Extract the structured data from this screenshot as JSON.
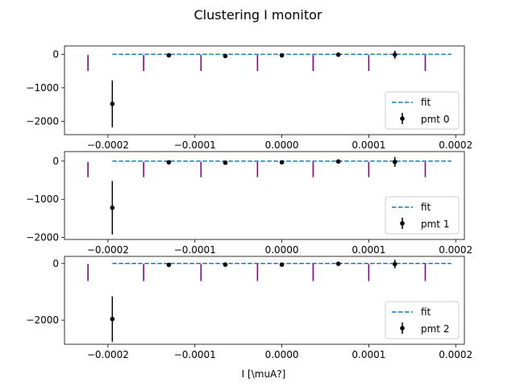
{
  "title": "Clustering I monitor",
  "colors": {
    "fit": "#1f77b4",
    "points": "#000000",
    "markers": "#8b008b",
    "legend_border": "#cccccc"
  },
  "chart_data": [
    {
      "type": "scatter",
      "xlabel": "",
      "xlim": [
        -0.00025,
        0.00021
      ],
      "ylim": [
        -2400,
        250
      ],
      "xticks": [
        -0.0002,
        -0.0001,
        0.0,
        0.0001,
        0.0002
      ],
      "xtick_labels": [
        "−0.0002",
        "−0.0001",
        "0.0000",
        "0.0001",
        "0.0002"
      ],
      "yticks": [
        0,
        -1000,
        -2000
      ],
      "ytick_labels": [
        "0",
        "−1000",
        "−2000"
      ],
      "legend": {
        "position": "lower-right",
        "entries": [
          "fit",
          "pmt 0"
        ]
      },
      "fit": {
        "label": "fit",
        "x": [
          -0.000195,
          0.000195
        ],
        "y": [
          0,
          0
        ]
      },
      "series": [
        {
          "name": "pmt 0",
          "x": [
            -0.000195,
            -0.00013,
            -6.5e-05,
            0.0,
            6.5e-05,
            0.00013
          ],
          "y": [
            -1480,
            -30,
            -50,
            -30,
            -10,
            -10
          ],
          "yerr": [
            700,
            20,
            20,
            20,
            20,
            120
          ]
        }
      ],
      "vlines": {
        "x": [
          -0.000223,
          -0.000159,
          -9.3e-05,
          -2.8e-05,
          3.6e-05,
          0.0001,
          0.000165
        ],
        "ymin": -500,
        "ymax": -20
      }
    },
    {
      "type": "scatter",
      "xlabel": "",
      "xlim": [
        -0.00025,
        0.00021
      ],
      "ylim": [
        -2050,
        250
      ],
      "xticks": [
        -0.0002,
        -0.0001,
        0.0,
        0.0001,
        0.0002
      ],
      "xtick_labels": [
        "−0.0002",
        "−0.0001",
        "0.0000",
        "0.0001",
        "0.0002"
      ],
      "yticks": [
        0,
        -1000,
        -2000
      ],
      "ytick_labels": [
        "0",
        "−1000",
        "−2000"
      ],
      "legend": {
        "position": "lower-right",
        "entries": [
          "fit",
          "pmt 1"
        ]
      },
      "fit": {
        "label": "fit",
        "x": [
          -0.000195,
          0.000195
        ],
        "y": [
          0,
          0
        ]
      },
      "series": [
        {
          "name": "pmt 1",
          "x": [
            -0.000195,
            -0.00013,
            -6.5e-05,
            0.0,
            6.5e-05,
            0.00013
          ],
          "y": [
            -1220,
            -30,
            -40,
            -30,
            -10,
            -20
          ],
          "yerr": [
            700,
            20,
            20,
            20,
            20,
            130
          ]
        }
      ],
      "vlines": {
        "x": [
          -0.000223,
          -0.000159,
          -9.3e-05,
          -2.8e-05,
          3.6e-05,
          0.0001,
          0.000165
        ],
        "ymin": -420,
        "ymax": -20
      }
    },
    {
      "type": "scatter",
      "xlabel": "I [\\muA?]",
      "xlim": [
        -0.00025,
        0.00021
      ],
      "ylim": [
        -2850,
        250
      ],
      "xticks": [
        -0.0002,
        -0.0001,
        0.0,
        0.0001,
        0.0002
      ],
      "xtick_labels": [
        "−0.0002",
        "−0.0001",
        "0.0000",
        "0.0001",
        "0.0002"
      ],
      "yticks": [
        0,
        -2000
      ],
      "ytick_labels": [
        "0",
        "−2000"
      ],
      "legend": {
        "position": "lower-right",
        "entries": [
          "fit",
          "pmt 2"
        ]
      },
      "fit": {
        "label": "fit",
        "x": [
          -0.000195,
          0.000195
        ],
        "y": [
          0,
          0
        ]
      },
      "series": [
        {
          "name": "pmt 2",
          "x": [
            -0.000195,
            -0.00013,
            -6.5e-05,
            0.0,
            6.5e-05,
            0.00013
          ],
          "y": [
            -1960,
            -50,
            -40,
            -40,
            -10,
            -20
          ],
          "yerr": [
            800,
            30,
            30,
            30,
            30,
            150
          ]
        }
      ],
      "vlines": {
        "x": [
          -0.000223,
          -0.000159,
          -9.3e-05,
          -2.8e-05,
          3.6e-05,
          0.0001,
          0.000165
        ],
        "ymin": -620,
        "ymax": -20
      }
    }
  ]
}
